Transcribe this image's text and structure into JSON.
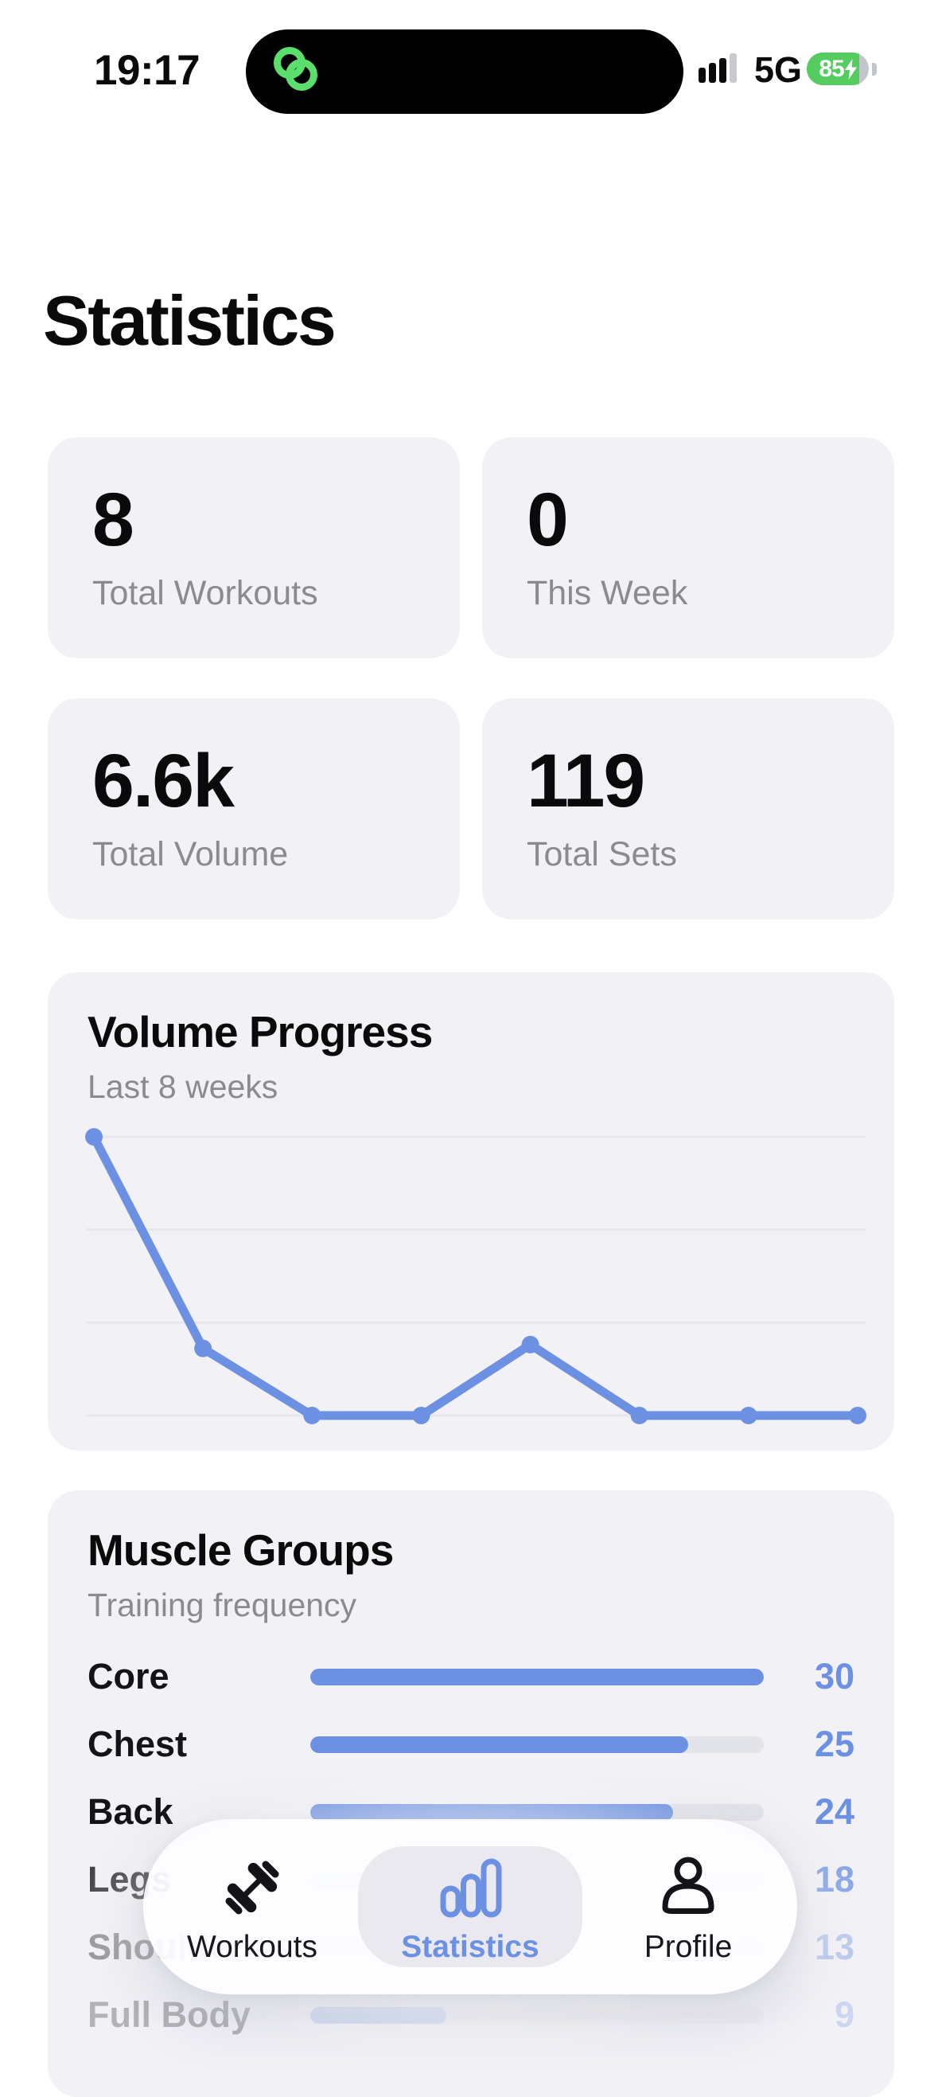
{
  "status_bar": {
    "time": "19:17",
    "network": "5G",
    "battery_level": "85",
    "charging": true
  },
  "header": {
    "title": "Statistics"
  },
  "stat_cards": [
    {
      "value": "8",
      "label": "Total Workouts"
    },
    {
      "value": "0",
      "label": "This Week"
    },
    {
      "value": "6.6k",
      "label": "Total Volume"
    },
    {
      "value": "119",
      "label": "Total Sets"
    }
  ],
  "volume_card": {
    "title": "Volume Progress",
    "subtitle": "Last 8 weeks"
  },
  "muscle_card": {
    "title": "Muscle Groups",
    "subtitle": "Training frequency",
    "max_value": 30,
    "rows": [
      {
        "label": "Core",
        "value": 30
      },
      {
        "label": "Chest",
        "value": 25
      },
      {
        "label": "Back",
        "value": 24
      },
      {
        "label": "Legs",
        "value": 18
      },
      {
        "label": "Shoulders",
        "value": 13
      },
      {
        "label": "Full Body",
        "value": 9
      }
    ]
  },
  "tab_bar": {
    "items": [
      {
        "label": "Workouts",
        "icon": "dumbbell-icon",
        "active": false
      },
      {
        "label": "Statistics",
        "icon": "bar-chart-icon",
        "active": true
      },
      {
        "label": "Profile",
        "icon": "person-icon",
        "active": false
      }
    ]
  },
  "chart_data": [
    {
      "type": "line",
      "title": "Volume Progress",
      "subtitle": "Last 8 weeks",
      "x": [
        1,
        2,
        3,
        4,
        5,
        6,
        7,
        8
      ],
      "values": [
        4400,
        1060,
        0,
        0,
        1120,
        0,
        0,
        0
      ],
      "ylim": [
        0,
        4400
      ],
      "gridlines": 4,
      "axis_tick_labels_visible": false,
      "legend": false,
      "line_color": "#6D91E2",
      "point_markers": true
    },
    {
      "type": "bar",
      "orientation": "horizontal",
      "title": "Muscle Groups",
      "subtitle": "Training frequency",
      "categories": [
        "Core",
        "Chest",
        "Back",
        "Legs",
        "Shoulders",
        "Full Body"
      ],
      "values": [
        30,
        25,
        24,
        18,
        13,
        9
      ],
      "xlim": [
        0,
        30
      ],
      "bar_color": "#6D91E2",
      "value_label_position": "right"
    }
  ],
  "colors": {
    "accent_blue": "#6D91E2",
    "card_bg": "#F1F1F6",
    "text_gray": "#8A8A91",
    "track_gray": "#E3E3EA",
    "battery_green": "#55CC60",
    "island_icon_green": "#5CDE6C",
    "tab_highlight": "#E9E9EF"
  }
}
